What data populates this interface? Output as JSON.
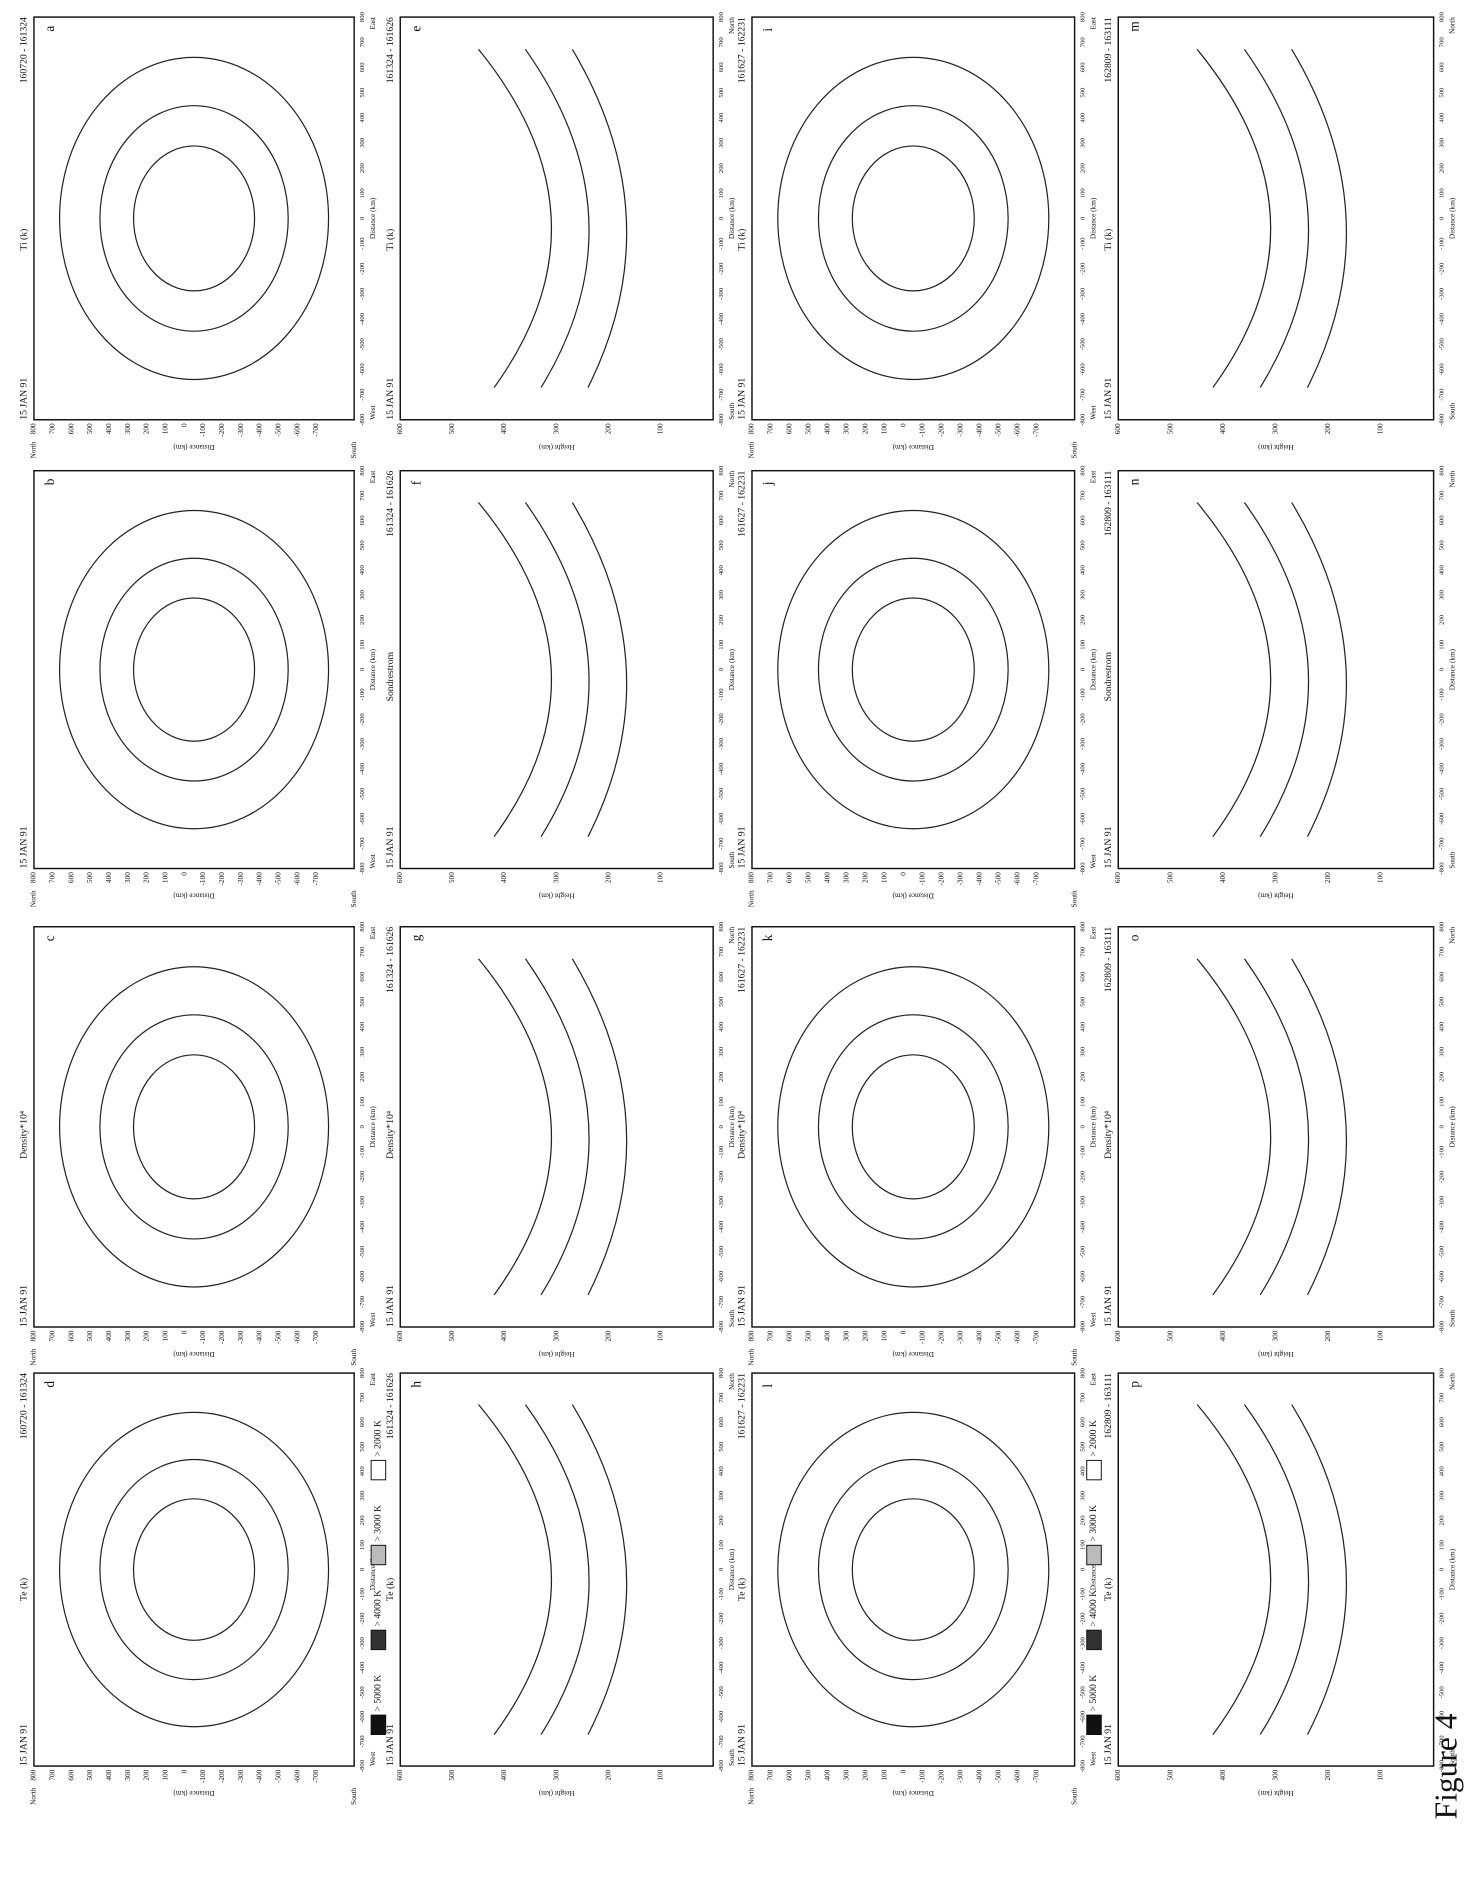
{
  "axes": {
    "polar": {
      "y_label": "Distance (km)",
      "y_top": "North",
      "y_bottom": "South",
      "x_label": "Distance (km)",
      "x_left": "West",
      "x_right": "East",
      "yticks": [
        "800",
        "700",
        "600",
        "500",
        "400",
        "300",
        "200",
        "100",
        "0",
        "-100",
        "-200",
        "-300",
        "-400",
        "-500",
        "-600",
        "-700"
      ],
      "xticks": [
        "-800",
        "-700",
        "-600",
        "-500",
        "-400",
        "-300",
        "-200",
        "-100",
        "0",
        "100",
        "200",
        "300",
        "400",
        "500",
        "600",
        "700",
        "800"
      ]
    },
    "height": {
      "y_label": "Height (km)",
      "x_label": "Distance (km)",
      "x_left": "South",
      "x_right": "North",
      "yticks": [
        "600",
        "500",
        "400",
        "300",
        "200",
        "100"
      ],
      "xticks": [
        "-800",
        "-700",
        "-600",
        "-500",
        "-400",
        "-300",
        "-200",
        "-100",
        "0",
        "100",
        "200",
        "300",
        "400",
        "500",
        "600",
        "700",
        "800"
      ]
    }
  },
  "panels": [
    {
      "date": "15 JAN 91",
      "quantity": "Ti (k)",
      "time": "160720 - 161324",
      "letter": "a",
      "axis": "polar"
    },
    {
      "date": "15 JAN 91",
      "quantity": "",
      "time": "",
      "letter": "b",
      "axis": "polar"
    },
    {
      "date": "15 JAN 91",
      "quantity": "Density*10⁴",
      "time": "",
      "letter": "c",
      "axis": "polar"
    },
    {
      "date": "15 JAN 91",
      "quantity": "Te (k)",
      "time": "160720 - 161324",
      "letter": "d",
      "axis": "polar"
    },
    {
      "date": "15 JAN 91",
      "quantity": "Ti (k)",
      "time": "161324 - 161626",
      "letter": "e",
      "axis": "height"
    },
    {
      "date": "15 JAN 91",
      "quantity": "Sondrestrom",
      "time": "161324 - 161626",
      "letter": "f",
      "axis": "height"
    },
    {
      "date": "15 JAN 91",
      "quantity": "Density*10⁴",
      "time": "161324 - 161626",
      "letter": "g",
      "axis": "height"
    },
    {
      "date": "15 JAN 91",
      "quantity": "Te (k)",
      "time": "161324 - 161626",
      "letter": "h",
      "axis": "height"
    },
    {
      "date": "15 JAN 91",
      "quantity": "Ti (k)",
      "time": "161627 - 162231",
      "letter": "i",
      "axis": "polar"
    },
    {
      "date": "15 JAN 91",
      "quantity": "",
      "time": "161627 - 162231",
      "letter": "j",
      "axis": "polar"
    },
    {
      "date": "15 JAN 91",
      "quantity": "Density*10⁴",
      "time": "161627 - 162231",
      "letter": "k",
      "axis": "polar"
    },
    {
      "date": "15 JAN 91",
      "quantity": "Te (k)",
      "time": "161627 - 162231",
      "letter": "l",
      "axis": "polar"
    },
    {
      "date": "15 JAN 91",
      "quantity": "Ti (k)",
      "time": "162809 - 163111",
      "letter": "m",
      "axis": "height"
    },
    {
      "date": "15 JAN 91",
      "quantity": "Sondrestrom",
      "time": "162809 - 163111",
      "letter": "n",
      "axis": "height"
    },
    {
      "date": "15 JAN 91",
      "quantity": "Density*10⁴",
      "time": "162809 - 163111",
      "letter": "o",
      "axis": "height"
    },
    {
      "date": "15 JAN 91",
      "quantity": "Te (k)",
      "time": "162809 - 163111",
      "letter": "p",
      "axis": "height"
    }
  ],
  "legend": [
    "> 2000 K",
    "> 3000 K",
    "> 4000 K",
    "> 5000 K"
  ],
  "caption": "Figure 4"
}
